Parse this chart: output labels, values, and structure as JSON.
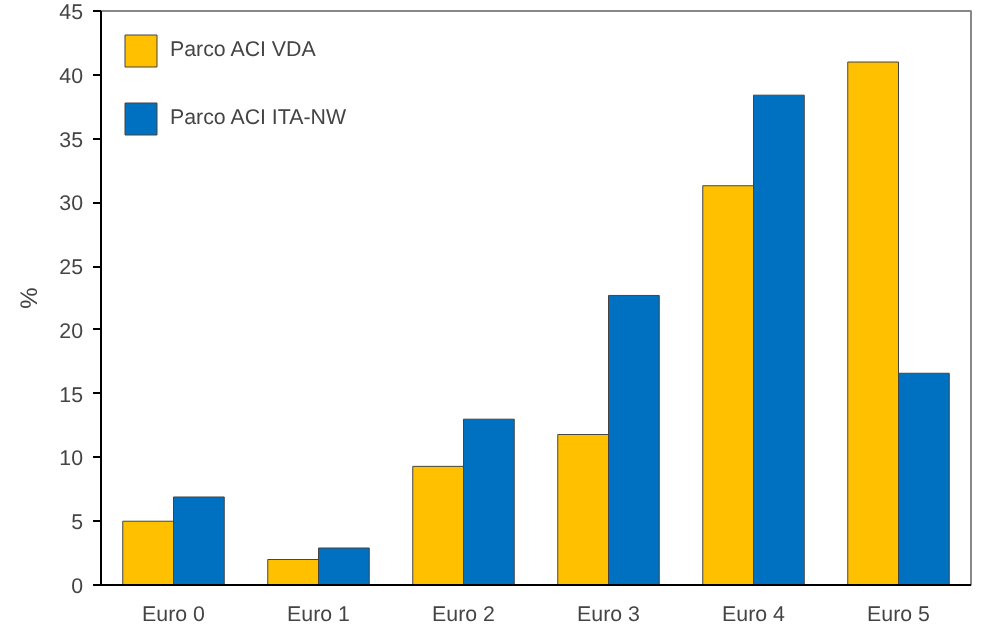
{
  "chart_data": {
    "type": "bar",
    "ylabel": "%",
    "categories": [
      "Euro 0",
      "Euro 1",
      "Euro 2",
      "Euro 3",
      "Euro 4",
      "Euro 5"
    ],
    "series": [
      {
        "name": "Parco ACI VDA",
        "color": "#ffc000",
        "values": [
          5.0,
          2.0,
          9.3,
          11.8,
          31.3,
          41.0
        ]
      },
      {
        "name": "Parco ACI ITA-NW",
        "color": "#0070c0",
        "values": [
          6.9,
          2.9,
          13.0,
          22.7,
          38.4,
          16.6
        ]
      }
    ],
    "ylim": [
      0,
      45
    ],
    "yticks": [
      0,
      5,
      10,
      15,
      20,
      25,
      30,
      35,
      40,
      45
    ],
    "grid": false,
    "legend": "top left"
  }
}
